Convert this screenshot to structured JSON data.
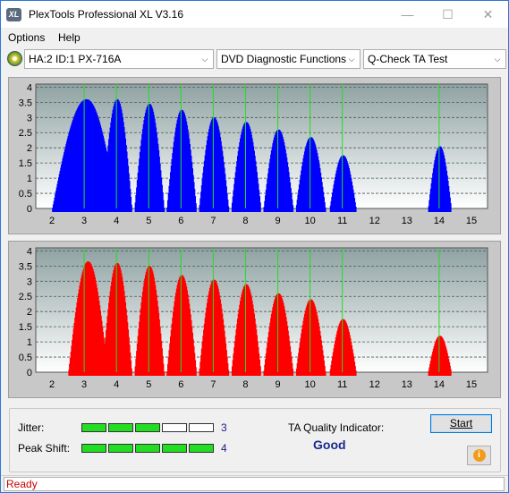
{
  "window": {
    "title": "PlexTools Professional XL V3.16",
    "icon_label": "XL"
  },
  "title_buttons": {
    "minimize": "—",
    "maximize": "☐",
    "close": "✕"
  },
  "menu": [
    {
      "label": "Options"
    },
    {
      "label": "Help"
    }
  ],
  "toolbar": {
    "drive": "HA:2 ID:1  PX-716A",
    "function": "DVD Diagnostic Functions",
    "test": "Q-Check TA Test",
    "dropdown_glyph": "⌵"
  },
  "colors": {
    "top_chart_series": "#0000ff",
    "bottom_chart_series": "#ff0000",
    "marker_lines": "#22dd22",
    "plot_background": "#a9b6b6",
    "jitter_segment_on": "#22dd22",
    "status_text": "#cc0000"
  },
  "chart_data": [
    {
      "type": "area",
      "name": "top-chart",
      "x_ticks": [
        "2",
        "3",
        "4",
        "5",
        "6",
        "7",
        "8",
        "9",
        "10",
        "11",
        "12",
        "13",
        "14",
        "15"
      ],
      "y_ticks": [
        "4",
        "3.5",
        "3",
        "2.5",
        "2",
        "1.5",
        "1",
        "0.5",
        "0"
      ],
      "xlim": [
        1.5,
        15.5
      ],
      "ylim": [
        0,
        4.1
      ],
      "markers_x": [
        3,
        4,
        5,
        6,
        7,
        8,
        9,
        10,
        11,
        14
      ],
      "grid": true,
      "series_color": "#0000ff",
      "peaks": [
        {
          "center": 3.05,
          "half_width": 0.95,
          "height": 3.6,
          "start": 2.0
        },
        {
          "center": 4.0,
          "half_width": 0.45,
          "height": 3.6
        },
        {
          "center": 5.0,
          "half_width": 0.45,
          "height": 3.45
        },
        {
          "center": 6.0,
          "half_width": 0.45,
          "height": 3.25
        },
        {
          "center": 7.0,
          "half_width": 0.45,
          "height": 3.0
        },
        {
          "center": 8.0,
          "half_width": 0.45,
          "height": 2.85
        },
        {
          "center": 9.0,
          "half_width": 0.45,
          "height": 2.6
        },
        {
          "center": 10.0,
          "half_width": 0.45,
          "height": 2.35
        },
        {
          "center": 11.0,
          "half_width": 0.4,
          "height": 1.75
        },
        {
          "center": 14.0,
          "half_width": 0.35,
          "height": 2.05
        }
      ]
    },
    {
      "type": "area",
      "name": "bottom-chart",
      "x_ticks": [
        "2",
        "3",
        "4",
        "5",
        "6",
        "7",
        "8",
        "9",
        "10",
        "11",
        "12",
        "13",
        "14",
        "15"
      ],
      "y_ticks": [
        "4",
        "3.5",
        "3",
        "2.5",
        "2",
        "1.5",
        "1",
        "0.5",
        "0"
      ],
      "xlim": [
        1.5,
        15.5
      ],
      "ylim": [
        0,
        4.1
      ],
      "markers_x": [
        3,
        4,
        5,
        6,
        7,
        8,
        9,
        10,
        11,
        14
      ],
      "grid": true,
      "series_color": "#ff0000",
      "peaks": [
        {
          "center": 3.1,
          "half_width": 0.6,
          "height": 3.65,
          "start": 2.5
        },
        {
          "center": 4.0,
          "half_width": 0.45,
          "height": 3.6
        },
        {
          "center": 5.0,
          "half_width": 0.45,
          "height": 3.5
        },
        {
          "center": 6.0,
          "half_width": 0.45,
          "height": 3.2
        },
        {
          "center": 7.0,
          "half_width": 0.45,
          "height": 3.05
        },
        {
          "center": 8.0,
          "half_width": 0.45,
          "height": 2.9
        },
        {
          "center": 9.0,
          "half_width": 0.45,
          "height": 2.6
        },
        {
          "center": 10.0,
          "half_width": 0.45,
          "height": 2.4
        },
        {
          "center": 11.0,
          "half_width": 0.4,
          "height": 1.75
        },
        {
          "center": 14.0,
          "half_width": 0.35,
          "height": 1.2
        }
      ]
    }
  ],
  "metrics": {
    "jitter": {
      "label": "Jitter:",
      "segments_on": 3,
      "segments_total": 5,
      "value": "3"
    },
    "peak_shift": {
      "label": "Peak Shift:",
      "segments_on": 5,
      "segments_total": 5,
      "value": "4"
    }
  },
  "quality": {
    "label": "TA Quality Indicator:",
    "value": "Good"
  },
  "buttons": {
    "start": "Start",
    "info_glyph": "i"
  },
  "status": {
    "text": "Ready"
  }
}
